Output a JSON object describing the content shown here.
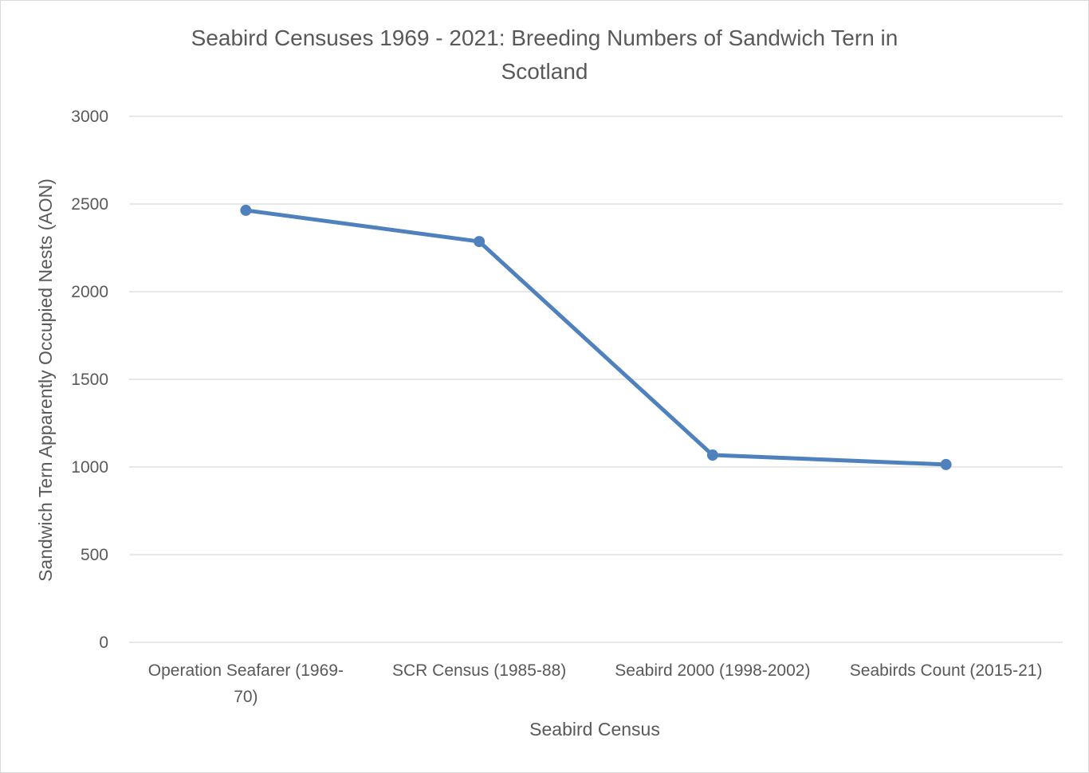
{
  "chart_data": {
    "type": "line",
    "title": "Seabird Censuses 1969 - 2021: Breeding Numbers of Sandwich Tern in Scotland",
    "title_lines": [
      "Seabird Censuses 1969 - 2021: Breeding Numbers of Sandwich Tern in",
      "Scotland"
    ],
    "xlabel": "Seabird Census",
    "ylabel": "Sandwich Tern Apparently Occupied Nests (AON)",
    "categories": [
      "Operation Seafarer (1969-70)",
      "SCR Census (1985-88)",
      "Seabird 2000 (1998-2002)",
      "Seabirds Count (2015-21)"
    ],
    "category_label_lines": [
      [
        "Operation Seafarer (1969-",
        "70)"
      ],
      [
        "SCR Census (1985-88)"
      ],
      [
        "Seabird 2000 (1998-2002)"
      ],
      [
        "Seabirds Count (2015-21)"
      ]
    ],
    "series": [
      {
        "values": [
          2464,
          2286,
          1068,
          1014
        ],
        "color": "#4f81bd"
      }
    ],
    "ylim": [
      0,
      3000
    ],
    "yticks": [
      0,
      500,
      1000,
      1500,
      2000,
      2500,
      3000
    ],
    "grid": true,
    "gridline_color": "#d9d9d9",
    "legend": "none"
  }
}
